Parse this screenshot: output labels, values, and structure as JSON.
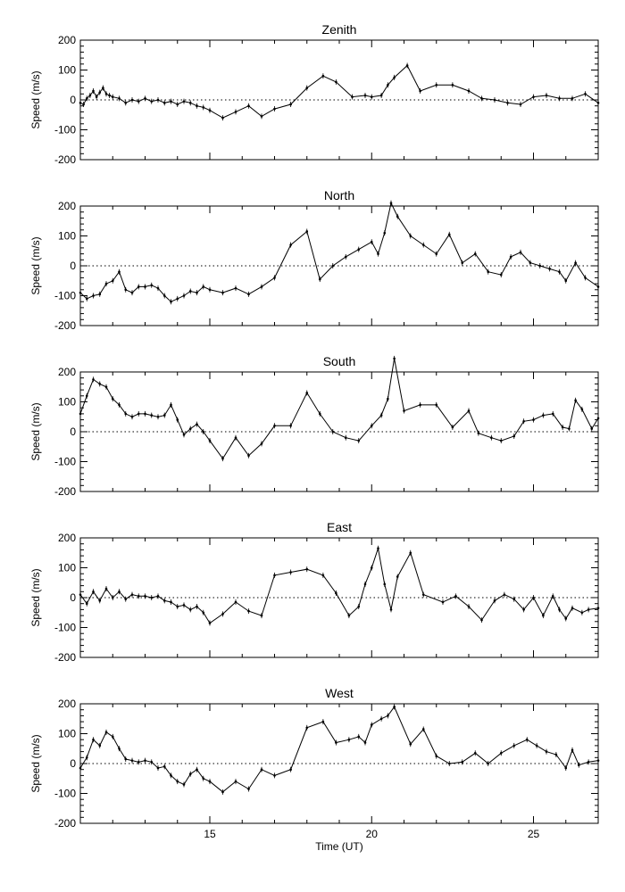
{
  "chart_data": [
    {
      "type": "line",
      "title": "Zenith",
      "ylabel": "Speed (m/s)",
      "xlabel": "",
      "xlim": [
        11,
        27
      ],
      "ylim": [
        -200,
        200
      ],
      "yticks": [
        "200",
        "100",
        "0",
        "-100",
        "-200"
      ],
      "xticks": [],
      "x": [
        11.0,
        11.1,
        11.2,
        11.3,
        11.4,
        11.5,
        11.6,
        11.7,
        11.8,
        11.9,
        12.0,
        12.2,
        12.4,
        12.6,
        12.8,
        13.0,
        13.2,
        13.4,
        13.6,
        13.8,
        14.0,
        14.2,
        14.4,
        14.6,
        14.8,
        15.0,
        15.4,
        15.8,
        16.2,
        16.6,
        17.0,
        17.5,
        18.0,
        18.5,
        18.9,
        19.4,
        19.8,
        20.0,
        20.3,
        20.5,
        20.7,
        21.1,
        21.5,
        22.0,
        22.5,
        23.0,
        23.4,
        23.8,
        24.2,
        24.6,
        25.0,
        25.4,
        25.8,
        26.2,
        26.6,
        27.0
      ],
      "values": [
        -10,
        -15,
        5,
        15,
        30,
        10,
        25,
        40,
        20,
        15,
        10,
        5,
        -10,
        0,
        -5,
        5,
        -5,
        0,
        -10,
        -5,
        -15,
        -5,
        -10,
        -20,
        -25,
        -35,
        -60,
        -40,
        -20,
        -55,
        -30,
        -15,
        40,
        80,
        60,
        10,
        15,
        10,
        15,
        50,
        75,
        115,
        30,
        50,
        50,
        30,
        5,
        0,
        -10,
        -15,
        10,
        15,
        5,
        5,
        20,
        -10
      ]
    },
    {
      "type": "line",
      "title": "North",
      "ylabel": "Speed (m/s)",
      "xlabel": "",
      "xlim": [
        11,
        27
      ],
      "ylim": [
        -200,
        200
      ],
      "yticks": [
        "200",
        "100",
        "0",
        "-100",
        "-200"
      ],
      "xticks": [],
      "x": [
        11.0,
        11.2,
        11.4,
        11.6,
        11.8,
        12.0,
        12.2,
        12.4,
        12.6,
        12.8,
        13.0,
        13.2,
        13.4,
        13.6,
        13.8,
        14.0,
        14.2,
        14.4,
        14.6,
        14.8,
        15.0,
        15.4,
        15.8,
        16.2,
        16.6,
        17.0,
        17.5,
        18.0,
        18.4,
        18.8,
        19.2,
        19.6,
        20.0,
        20.2,
        20.4,
        20.6,
        20.8,
        21.2,
        21.6,
        22.0,
        22.4,
        22.8,
        23.2,
        23.6,
        24.0,
        24.3,
        24.6,
        24.9,
        25.2,
        25.5,
        25.8,
        26.0,
        26.3,
        26.6,
        27.0
      ],
      "values": [
        -90,
        -110,
        -100,
        -95,
        -60,
        -50,
        -20,
        -80,
        -90,
        -70,
        -70,
        -65,
        -75,
        -100,
        -120,
        -110,
        -100,
        -85,
        -90,
        -70,
        -80,
        -90,
        -75,
        -95,
        -70,
        -40,
        70,
        115,
        -45,
        0,
        30,
        55,
        80,
        40,
        110,
        210,
        165,
        100,
        70,
        40,
        105,
        10,
        40,
        -20,
        -30,
        30,
        45,
        10,
        0,
        -10,
        -20,
        -50,
        10,
        -40,
        -70
      ]
    },
    {
      "type": "line",
      "title": "South",
      "ylabel": "Speed (m/s)",
      "xlabel": "",
      "xlim": [
        11,
        27
      ],
      "ylim": [
        -200,
        200
      ],
      "yticks": [
        "200",
        "100",
        "0",
        "-100",
        "-200"
      ],
      "xticks": [],
      "x": [
        11.0,
        11.2,
        11.4,
        11.6,
        11.8,
        12.0,
        12.2,
        12.4,
        12.6,
        12.8,
        13.0,
        13.2,
        13.4,
        13.6,
        13.8,
        14.0,
        14.2,
        14.4,
        14.6,
        14.8,
        15.0,
        15.4,
        15.8,
        16.2,
        16.6,
        17.0,
        17.5,
        18.0,
        18.4,
        18.8,
        19.2,
        19.6,
        20.0,
        20.3,
        20.5,
        20.7,
        21.0,
        21.5,
        22.0,
        22.5,
        23.0,
        23.3,
        23.7,
        24.0,
        24.4,
        24.7,
        25.0,
        25.3,
        25.6,
        25.9,
        26.1,
        26.3,
        26.5,
        26.8,
        27.0
      ],
      "values": [
        60,
        120,
        175,
        160,
        150,
        110,
        90,
        60,
        50,
        60,
        60,
        55,
        50,
        55,
        90,
        40,
        -10,
        10,
        25,
        0,
        -30,
        -90,
        -20,
        -80,
        -40,
        20,
        20,
        130,
        60,
        0,
        -20,
        -30,
        20,
        55,
        110,
        245,
        70,
        90,
        90,
        15,
        70,
        -5,
        -20,
        -30,
        -15,
        35,
        40,
        55,
        60,
        15,
        10,
        105,
        75,
        10,
        45
      ]
    },
    {
      "type": "line",
      "title": "East",
      "ylabel": "Speed (m/s)",
      "xlabel": "",
      "xlim": [
        11,
        27
      ],
      "ylim": [
        -200,
        200
      ],
      "yticks": [
        "200",
        "100",
        "0",
        "-100",
        "-200"
      ],
      "xticks": [],
      "x": [
        11.0,
        11.2,
        11.4,
        11.6,
        11.8,
        12.0,
        12.2,
        12.4,
        12.6,
        12.8,
        13.0,
        13.2,
        13.4,
        13.6,
        13.8,
        14.0,
        14.2,
        14.4,
        14.6,
        14.8,
        15.0,
        15.4,
        15.8,
        16.2,
        16.6,
        17.0,
        17.5,
        18.0,
        18.5,
        18.9,
        19.3,
        19.6,
        19.8,
        20.0,
        20.2,
        20.4,
        20.6,
        20.8,
        21.2,
        21.6,
        22.2,
        22.6,
        23.0,
        23.4,
        23.8,
        24.1,
        24.4,
        24.7,
        25.0,
        25.3,
        25.6,
        25.8,
        26.0,
        26.2,
        26.5,
        26.7,
        27.0
      ],
      "values": [
        10,
        -20,
        20,
        -10,
        30,
        0,
        20,
        -5,
        10,
        5,
        5,
        0,
        5,
        -10,
        -15,
        -30,
        -25,
        -40,
        -30,
        -50,
        -85,
        -55,
        -15,
        -45,
        -60,
        75,
        85,
        95,
        75,
        15,
        -60,
        -30,
        45,
        100,
        165,
        45,
        -40,
        70,
        150,
        10,
        -15,
        5,
        -30,
        -75,
        -10,
        10,
        -5,
        -40,
        0,
        -60,
        5,
        -40,
        -70,
        -35,
        -50,
        -40,
        -35
      ]
    },
    {
      "type": "line",
      "title": "West",
      "ylabel": "Speed (m/s)",
      "xlabel": "Time (UT)",
      "xlim": [
        11,
        27
      ],
      "ylim": [
        -200,
        200
      ],
      "yticks": [
        "200",
        "100",
        "0",
        "-100",
        "-200"
      ],
      "xticks": [
        "15",
        "20",
        "25"
      ],
      "x": [
        11.0,
        11.2,
        11.4,
        11.6,
        11.8,
        12.0,
        12.2,
        12.4,
        12.6,
        12.8,
        13.0,
        13.2,
        13.4,
        13.6,
        13.8,
        14.0,
        14.2,
        14.4,
        14.6,
        14.8,
        15.0,
        15.4,
        15.8,
        16.2,
        16.6,
        17.0,
        17.5,
        18.0,
        18.5,
        18.9,
        19.3,
        19.6,
        19.8,
        20.0,
        20.3,
        20.5,
        20.7,
        21.2,
        21.6,
        22.0,
        22.4,
        22.8,
        23.2,
        23.6,
        24.0,
        24.4,
        24.8,
        25.1,
        25.4,
        25.7,
        26.0,
        26.2,
        26.4,
        26.7,
        27.0
      ],
      "values": [
        -15,
        20,
        80,
        60,
        105,
        90,
        50,
        15,
        10,
        5,
        10,
        5,
        -15,
        -10,
        -40,
        -60,
        -70,
        -35,
        -20,
        -50,
        -60,
        -95,
        -60,
        -85,
        -20,
        -40,
        -20,
        120,
        140,
        70,
        80,
        90,
        70,
        130,
        150,
        160,
        190,
        65,
        115,
        25,
        0,
        5,
        35,
        0,
        35,
        60,
        80,
        60,
        40,
        30,
        -15,
        45,
        -5,
        5,
        10
      ]
    }
  ]
}
